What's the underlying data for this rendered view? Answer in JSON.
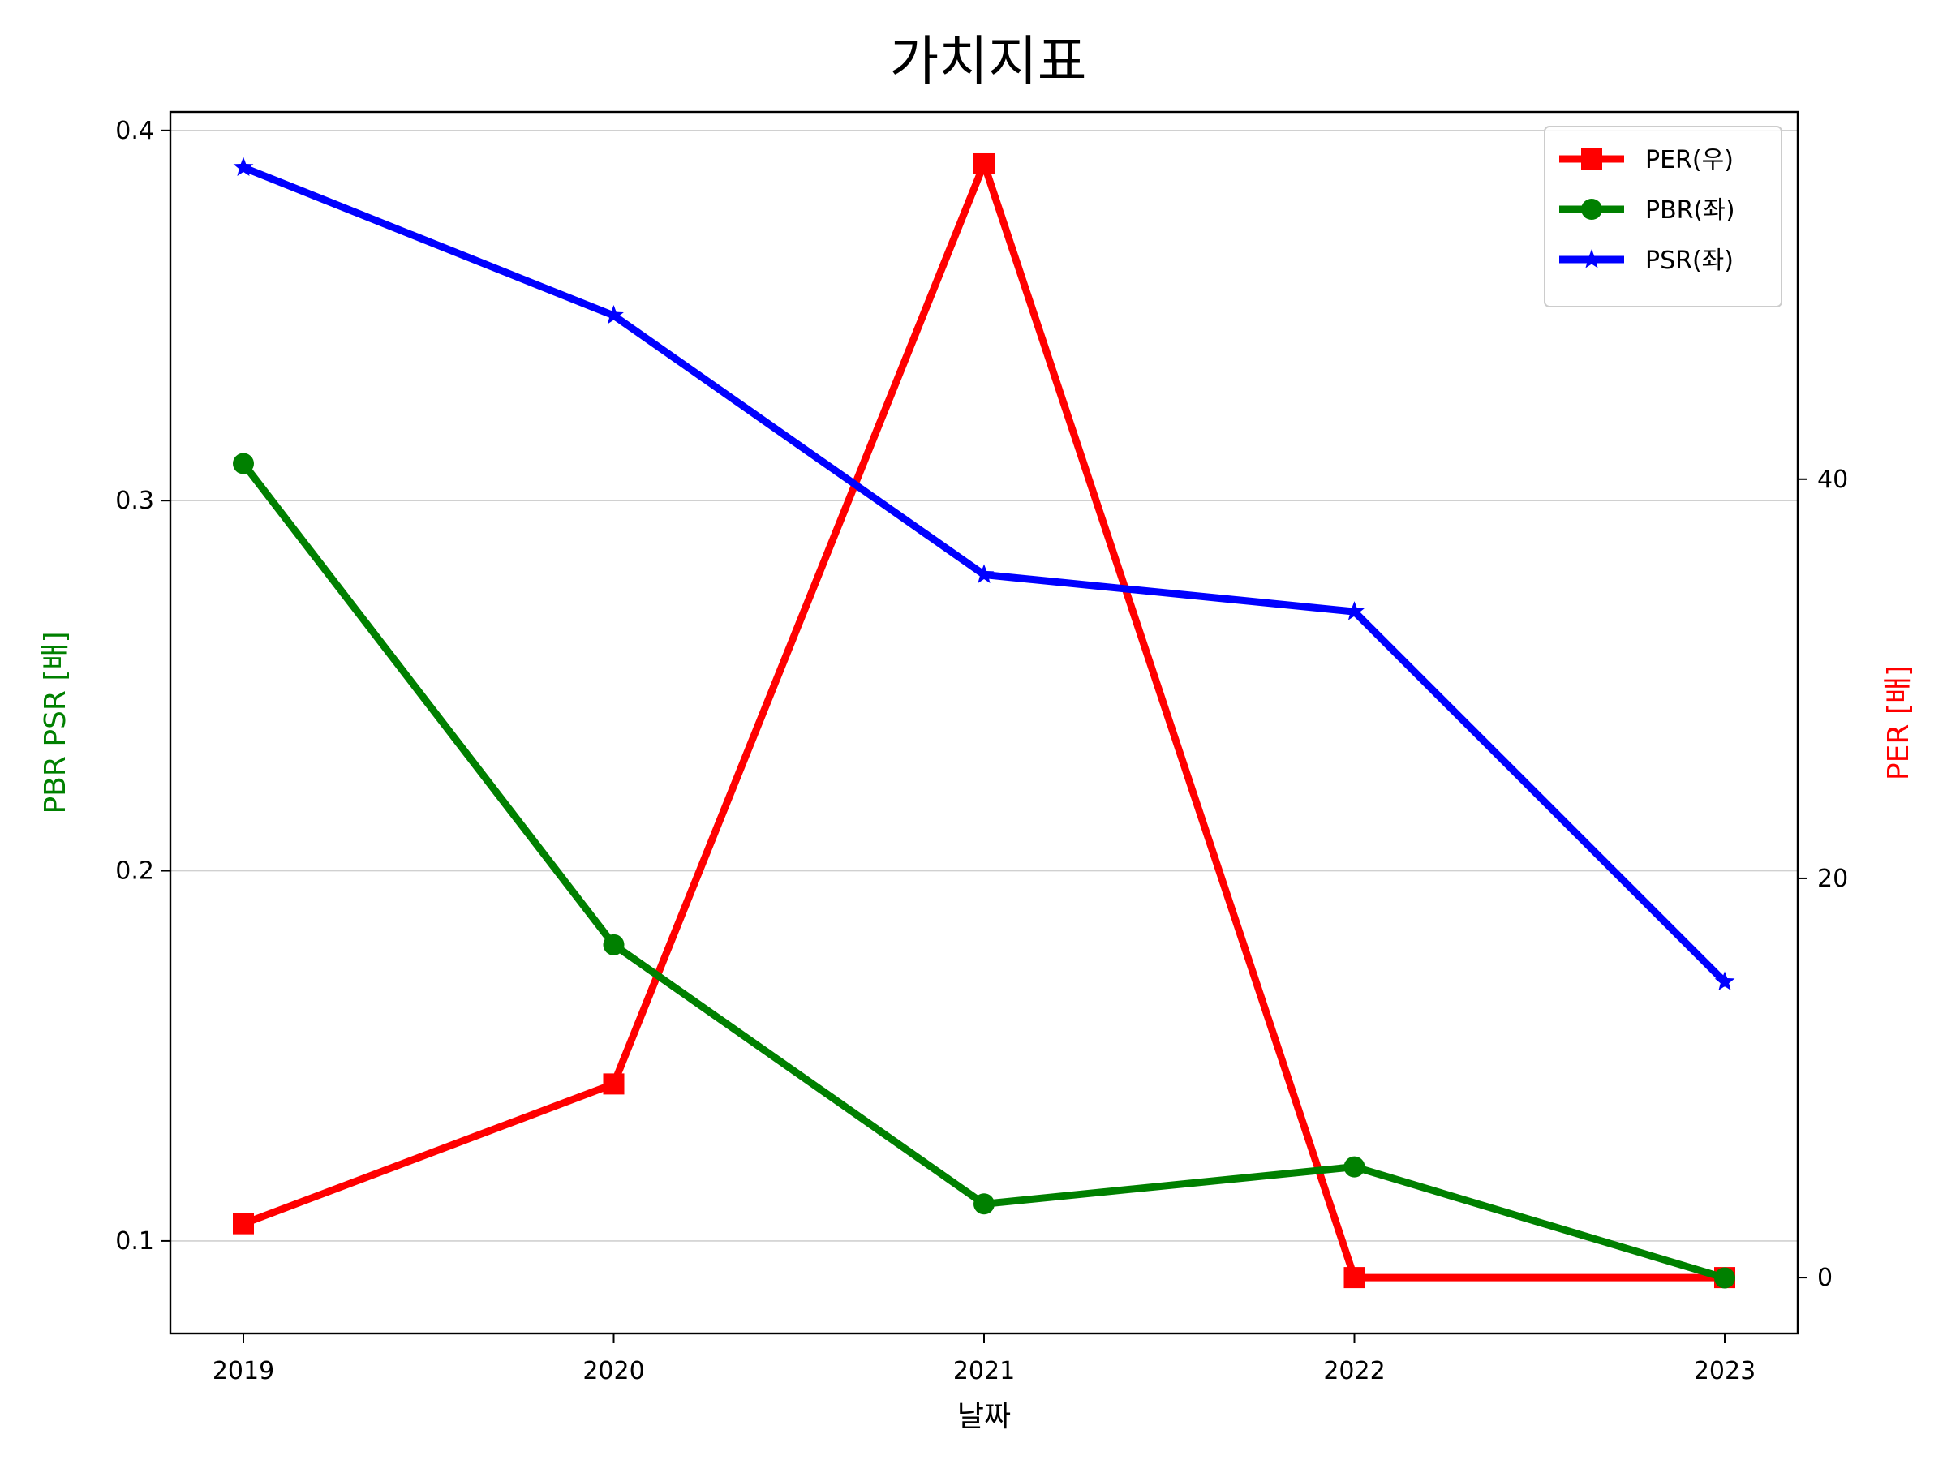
{
  "chart_data": {
    "type": "line",
    "title": "가치지표",
    "xlabel": "날짜",
    "ylabel_left": "PBR PSR [배]",
    "ylabel_right": "PER [배]",
    "categories": [
      "2019",
      "2020",
      "2021",
      "2022",
      "2023"
    ],
    "left_axis": {
      "ylim": [
        0.075,
        0.405
      ],
      "ticks": [
        "0.1",
        "0.2",
        "0.3",
        "0.4"
      ],
      "color": "#008000",
      "grid": true
    },
    "right_axis": {
      "ylim": [
        -2.8,
        58.4
      ],
      "ticks": [
        "0",
        "20",
        "40"
      ],
      "color": "#ff0000"
    },
    "series": [
      {
        "name": "PER(우)",
        "axis": "right",
        "color": "#ff0000",
        "marker": "square",
        "values": [
          2.7,
          9.7,
          55.8,
          0.0,
          0.0
        ]
      },
      {
        "name": "PBR(좌)",
        "axis": "left",
        "color": "#008000",
        "marker": "circle",
        "values": [
          0.31,
          0.18,
          0.11,
          0.12,
          0.09
        ]
      },
      {
        "name": "PSR(좌)",
        "axis": "left",
        "color": "#0000ff",
        "marker": "star",
        "values": [
          0.39,
          0.35,
          0.28,
          0.27,
          0.17
        ]
      }
    ],
    "legend": {
      "position": "top-right"
    }
  }
}
